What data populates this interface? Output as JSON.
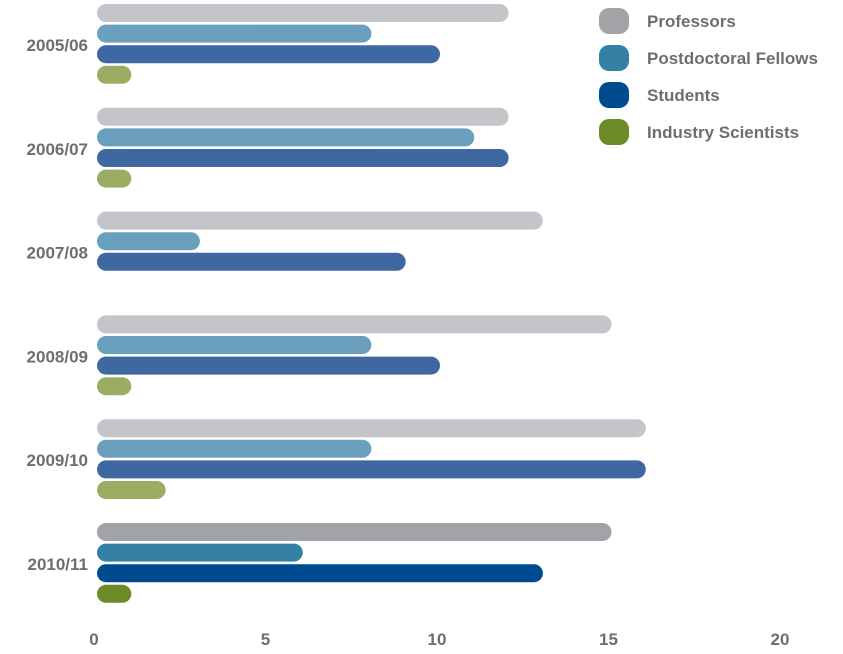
{
  "chart_data": {
    "type": "bar",
    "orientation": "horizontal",
    "title": "",
    "xlabel": "",
    "ylabel": "",
    "xlim": [
      0,
      20
    ],
    "x_ticks": [
      "0",
      "5",
      "10",
      "15",
      "20"
    ],
    "grid": false,
    "legend_position": "top-right",
    "categories": [
      "2005/06",
      "2006/07",
      "2007/08",
      "2008/09",
      "2009/10",
      "2010/11"
    ],
    "series": [
      {
        "name": "Professors",
        "values": [
          12,
          12,
          13,
          15,
          16,
          15
        ],
        "color": "#c4c5c8",
        "highlight_color": "#a2a3a6"
      },
      {
        "name": "Postdoctoral Fellows",
        "values": [
          8,
          11,
          3,
          8,
          8,
          6
        ],
        "color": "#6a9fbd",
        "highlight_color": "#3581a5"
      },
      {
        "name": "Students",
        "values": [
          10,
          12,
          9,
          10,
          16,
          13
        ],
        "color": "#3f67a2",
        "highlight_color": "#004a8f"
      },
      {
        "name": "Industry Scientists",
        "values": [
          1,
          1,
          0,
          1,
          2,
          1
        ],
        "color": "#9bad62",
        "highlight_color": "#6c8a27"
      }
    ],
    "highlighted_category": "2010/11"
  }
}
